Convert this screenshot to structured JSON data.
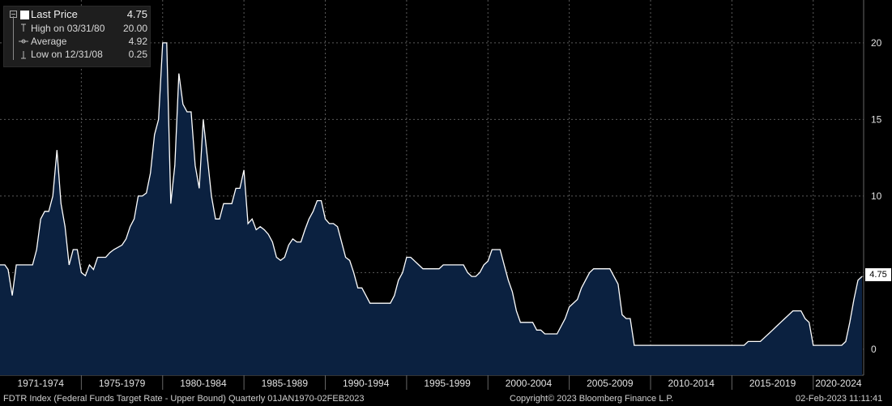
{
  "chart_data": {
    "type": "area",
    "x_labels": [
      "1971-1974",
      "1975-1979",
      "1980-1984",
      "1985-1989",
      "1990-1994",
      "1995-1999",
      "2000-2004",
      "2005-2009",
      "2010-2014",
      "2015-2019",
      "2020-2024"
    ],
    "y_ticks": [
      "0",
      "5",
      "10",
      "15",
      "20"
    ],
    "ylim": [
      -1.7,
      22.8
    ],
    "xlim": [
      1970.0,
      2023.1
    ],
    "grid": true,
    "series": [
      {
        "name": "Last Price",
        "points": [
          [
            1970.0,
            5.5
          ],
          [
            1970.3,
            5.5
          ],
          [
            1970.5,
            5.2
          ],
          [
            1970.75,
            3.5
          ],
          [
            1971.0,
            5.5
          ],
          [
            1971.5,
            5.5
          ],
          [
            1971.75,
            5.5
          ],
          [
            1972.0,
            5.5
          ],
          [
            1972.25,
            6.5
          ],
          [
            1972.5,
            8.5
          ],
          [
            1972.75,
            9.0
          ],
          [
            1973.0,
            9.0
          ],
          [
            1973.25,
            10.0
          ],
          [
            1973.5,
            13.0
          ],
          [
            1973.75,
            9.5
          ],
          [
            1974.0,
            8.0
          ],
          [
            1974.25,
            5.5
          ],
          [
            1974.5,
            6.5
          ],
          [
            1974.75,
            6.5
          ],
          [
            1975.0,
            5.0
          ],
          [
            1975.25,
            4.8
          ],
          [
            1975.5,
            5.5
          ],
          [
            1975.75,
            5.2
          ],
          [
            1976.0,
            6.0
          ],
          [
            1976.5,
            6.0
          ],
          [
            1976.75,
            6.3
          ],
          [
            1977.0,
            6.5
          ],
          [
            1977.5,
            6.8
          ],
          [
            1977.75,
            7.2
          ],
          [
            1978.0,
            8.0
          ],
          [
            1978.25,
            8.5
          ],
          [
            1978.5,
            10.0
          ],
          [
            1978.75,
            10.0
          ],
          [
            1979.0,
            10.2
          ],
          [
            1979.25,
            11.5
          ],
          [
            1979.5,
            14.0
          ],
          [
            1979.75,
            15.0
          ],
          [
            1980.0,
            20.0
          ],
          [
            1980.25,
            20.0
          ],
          [
            1980.5,
            9.5
          ],
          [
            1980.75,
            12.0
          ],
          [
            1981.0,
            18.0
          ],
          [
            1981.25,
            16.0
          ],
          [
            1981.5,
            15.5
          ],
          [
            1981.75,
            15.5
          ],
          [
            1982.0,
            12.0
          ],
          [
            1982.25,
            10.5
          ],
          [
            1982.5,
            15.0
          ],
          [
            1982.75,
            12.5
          ],
          [
            1983.0,
            10.0
          ],
          [
            1983.25,
            8.5
          ],
          [
            1983.5,
            8.5
          ],
          [
            1983.75,
            9.5
          ],
          [
            1984.0,
            9.5
          ],
          [
            1984.25,
            9.5
          ],
          [
            1984.5,
            10.5
          ],
          [
            1984.75,
            10.5
          ],
          [
            1985.0,
            11.7
          ],
          [
            1985.25,
            8.2
          ],
          [
            1985.5,
            8.5
          ],
          [
            1985.75,
            7.8
          ],
          [
            1986.0,
            8.0
          ],
          [
            1986.25,
            7.8
          ],
          [
            1986.5,
            7.5
          ],
          [
            1986.75,
            7.0
          ],
          [
            1987.0,
            6.0
          ],
          [
            1987.25,
            5.8
          ],
          [
            1987.5,
            6.0
          ],
          [
            1987.75,
            6.8
          ],
          [
            1988.0,
            7.2
          ],
          [
            1988.25,
            7.0
          ],
          [
            1988.5,
            7.0
          ],
          [
            1988.75,
            7.8
          ],
          [
            1989.0,
            8.5
          ],
          [
            1989.25,
            9.0
          ],
          [
            1989.5,
            9.7
          ],
          [
            1989.75,
            9.7
          ],
          [
            1990.0,
            8.5
          ],
          [
            1990.25,
            8.2
          ],
          [
            1990.5,
            8.2
          ],
          [
            1990.75,
            8.0
          ],
          [
            1991.0,
            7.0
          ],
          [
            1991.25,
            6.0
          ],
          [
            1991.5,
            5.8
          ],
          [
            1991.75,
            5.0
          ],
          [
            1992.0,
            4.0
          ],
          [
            1992.25,
            4.0
          ],
          [
            1992.5,
            3.5
          ],
          [
            1992.75,
            3.0
          ],
          [
            1993.0,
            3.0
          ],
          [
            1994.0,
            3.0
          ],
          [
            1994.25,
            3.5
          ],
          [
            1994.5,
            4.5
          ],
          [
            1994.75,
            5.0
          ],
          [
            1995.0,
            6.0
          ],
          [
            1995.25,
            6.0
          ],
          [
            1995.5,
            5.75
          ],
          [
            1995.75,
            5.5
          ],
          [
            1996.0,
            5.25
          ],
          [
            1997.0,
            5.25
          ],
          [
            1997.25,
            5.5
          ],
          [
            1998.0,
            5.5
          ],
          [
            1998.5,
            5.5
          ],
          [
            1998.75,
            5.0
          ],
          [
            1999.0,
            4.75
          ],
          [
            1999.25,
            4.75
          ],
          [
            1999.5,
            5.0
          ],
          [
            1999.75,
            5.5
          ],
          [
            2000.0,
            5.75
          ],
          [
            2000.25,
            6.5
          ],
          [
            2000.75,
            6.5
          ],
          [
            2001.0,
            5.5
          ],
          [
            2001.25,
            4.5
          ],
          [
            2001.5,
            3.75
          ],
          [
            2001.75,
            2.5
          ],
          [
            2002.0,
            1.75
          ],
          [
            2002.75,
            1.75
          ],
          [
            2003.0,
            1.25
          ],
          [
            2003.25,
            1.25
          ],
          [
            2003.5,
            1.0
          ],
          [
            2004.0,
            1.0
          ],
          [
            2004.25,
            1.0
          ],
          [
            2004.5,
            1.5
          ],
          [
            2004.75,
            2.0
          ],
          [
            2005.0,
            2.75
          ],
          [
            2005.5,
            3.25
          ],
          [
            2005.75,
            4.0
          ],
          [
            2006.0,
            4.5
          ],
          [
            2006.25,
            5.0
          ],
          [
            2006.5,
            5.25
          ],
          [
            2007.0,
            5.25
          ],
          [
            2007.5,
            5.25
          ],
          [
            2007.75,
            4.75
          ],
          [
            2008.0,
            4.25
          ],
          [
            2008.25,
            2.25
          ],
          [
            2008.5,
            2.0
          ],
          [
            2008.75,
            2.0
          ],
          [
            2009.0,
            0.25
          ],
          [
            2015.75,
            0.25
          ],
          [
            2016.0,
            0.5
          ],
          [
            2016.75,
            0.5
          ],
          [
            2017.0,
            0.75
          ],
          [
            2017.25,
            1.0
          ],
          [
            2017.5,
            1.25
          ],
          [
            2017.75,
            1.5
          ],
          [
            2018.0,
            1.75
          ],
          [
            2018.25,
            2.0
          ],
          [
            2018.5,
            2.25
          ],
          [
            2018.75,
            2.5
          ],
          [
            2019.25,
            2.5
          ],
          [
            2019.5,
            2.0
          ],
          [
            2019.75,
            1.75
          ],
          [
            2020.0,
            0.25
          ],
          [
            2021.75,
            0.25
          ],
          [
            2022.0,
            0.5
          ],
          [
            2022.25,
            1.75
          ],
          [
            2022.5,
            3.25
          ],
          [
            2022.75,
            4.5
          ],
          [
            2023.0,
            4.75
          ]
        ]
      }
    ],
    "colors": {
      "background": "#000000",
      "line": "#ffffff",
      "fill": "#0b2140",
      "grid": "#5a5a5a"
    }
  },
  "legend": {
    "last_price_label": "Last Price",
    "last_price_value": "4.75",
    "high_label": "High on 03/31/80",
    "high_value": "20.00",
    "average_label": "Average",
    "average_value": "4.92",
    "low_label": "Low on 12/31/08",
    "low_value": "0.25"
  },
  "last_value_tag": "4.75",
  "footer": {
    "description": "FDTR Index (Federal Funds Target Rate - Upper Bound)  Quarterly 01JAN1970-02FEB2023",
    "copyright": "Copyright© 2023 Bloomberg Finance L.P.",
    "timestamp": "02-Feb-2023 11:11:41"
  }
}
